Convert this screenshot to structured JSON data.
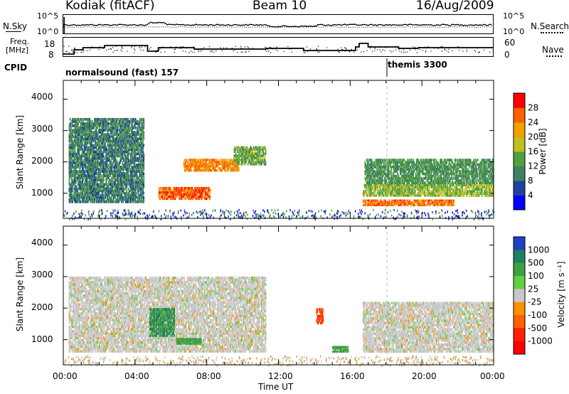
{
  "header": {
    "station": "Kodiak (fitACF)",
    "beam": "Beam 10",
    "date": "16/Aug/2009"
  },
  "top_panels": {
    "nsky_label": "N.Sky",
    "nsky_ticks": [
      "10^5",
      "10^0"
    ],
    "nsearch_label": "N.Search",
    "nsearch_ticks": [
      "10^5",
      "10^0"
    ],
    "freq_label_1": "Freq.",
    "freq_label_2": "[MHz]",
    "freq_ticks": [
      "18",
      "8"
    ],
    "nave_label": "Nave",
    "nave_ticks": [
      "60",
      "0"
    ],
    "cpid_label": "CPID",
    "cpid_segments": [
      {
        "label": "normalsound (fast) 157"
      },
      {
        "label": "themis 3300"
      }
    ]
  },
  "chart_data": [
    {
      "type": "heatmap",
      "panel": "power",
      "ylabel": "Slant Range [km]",
      "yticks": [
        "1000",
        "2000",
        "3000",
        "4000"
      ],
      "ylim": [
        200,
        4600
      ],
      "xlim": [
        0,
        24
      ],
      "colorbar": {
        "label": "Power [dB]",
        "ticks": [
          "4",
          "8",
          "12",
          "16",
          "20",
          "24",
          "28"
        ],
        "colors": [
          "#0000ff",
          "#2040a0",
          "#408060",
          "#50a040",
          "#c0c020",
          "#f0a000",
          "#ff6000",
          "#ff0000"
        ]
      },
      "features": [
        {
          "x_start_h": 0.3,
          "x_end_h": 4.5,
          "range_km": [
            700,
            3400
          ],
          "power_db": 12
        },
        {
          "x_start_h": 5.3,
          "x_end_h": 8.2,
          "range_km": [
            800,
            1200
          ],
          "power_db": 28
        },
        {
          "x_start_h": 6.7,
          "x_end_h": 9.8,
          "range_km": [
            1700,
            2100
          ],
          "power_db": 26
        },
        {
          "x_start_h": 9.5,
          "x_end_h": 11.3,
          "range_km": [
            1900,
            2500
          ],
          "power_db": 16
        },
        {
          "x_start_h": 16.7,
          "x_end_h": 21.8,
          "range_km": [
            600,
            800
          ],
          "power_db": 27
        },
        {
          "x_start_h": 16.7,
          "x_end_h": 24.0,
          "range_km": [
            900,
            1300
          ],
          "power_db": 18
        },
        {
          "x_start_h": 16.8,
          "x_end_h": 24.0,
          "range_km": [
            1300,
            2100
          ],
          "power_db": 14
        }
      ]
    },
    {
      "type": "heatmap",
      "panel": "velocity",
      "ylabel": "Slant Range [km]",
      "yticks": [
        "1000",
        "2000",
        "3000",
        "4000"
      ],
      "ylim": [
        200,
        4600
      ],
      "xlim": [
        0,
        24
      ],
      "xlabel": "Time UT",
      "xticks": [
        "00:00",
        "04:00",
        "08:00",
        "12:00",
        "16:00",
        "20:00",
        "00:00"
      ],
      "colorbar": {
        "label": "Velocity [m s⁻¹]",
        "ticks": [
          "1000",
          "500",
          "100",
          "25",
          "-25",
          "-100",
          "-500",
          "-1000"
        ],
        "colors": [
          "#2040c0",
          "#208060",
          "#40a040",
          "#60d040",
          "#c8c8c8",
          "#ff9000",
          "#ff6000",
          "#ff2000",
          "#ff0000"
        ]
      },
      "features": [
        {
          "x_start_h": 0.3,
          "x_end_h": 11.3,
          "range_km": [
            600,
            3000
          ],
          "velocity_ms": 0
        },
        {
          "x_start_h": 4.8,
          "x_end_h": 6.2,
          "range_km": [
            1100,
            2000
          ],
          "velocity_ms": 300
        },
        {
          "x_start_h": 6.3,
          "x_end_h": 7.7,
          "range_km": [
            850,
            1050
          ],
          "velocity_ms": 150
        },
        {
          "x_start_h": 15.0,
          "x_end_h": 15.9,
          "range_km": [
            600,
            800
          ],
          "velocity_ms": 150
        },
        {
          "x_start_h": 14.1,
          "x_end_h": 14.5,
          "range_km": [
            1500,
            2000
          ],
          "velocity_ms": -300
        },
        {
          "x_start_h": 16.7,
          "x_end_h": 24.0,
          "range_km": [
            600,
            2200
          ],
          "velocity_ms": 0
        }
      ]
    }
  ],
  "colors": {
    "frame": "#000000",
    "gray_scatter": "#c8c8c8"
  }
}
